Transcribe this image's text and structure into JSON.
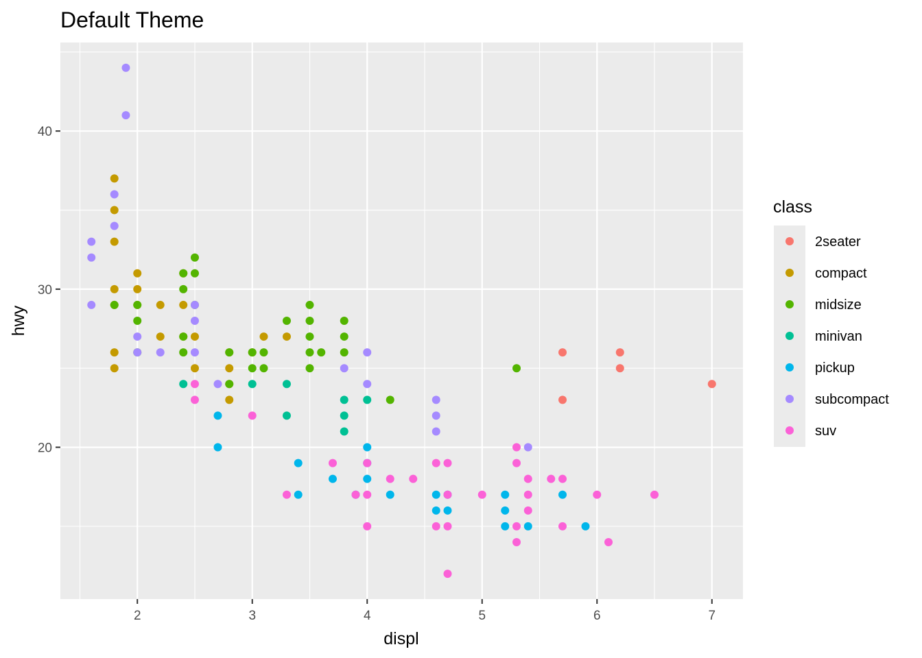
{
  "chart_data": {
    "type": "scatter",
    "title": "Default Theme",
    "xlabel": "displ",
    "ylabel": "hwy",
    "xlim": [
      1.33,
      7.27
    ],
    "ylim": [
      10.4,
      45.6
    ],
    "x_ticks": [
      2,
      3,
      4,
      5,
      6,
      7
    ],
    "y_ticks": [
      20,
      30,
      40
    ],
    "grid": true,
    "legend": {
      "title": "class",
      "position": "right"
    },
    "series": [
      {
        "name": "2seater",
        "color": "#F8766D",
        "points": [
          [
            5.7,
            26
          ],
          [
            5.7,
            23
          ],
          [
            6.2,
            26
          ],
          [
            6.2,
            25
          ],
          [
            7.0,
            24
          ]
        ]
      },
      {
        "name": "compact",
        "color": "#C49A00",
        "points": [
          [
            1.8,
            37
          ],
          [
            1.8,
            35
          ],
          [
            1.8,
            33
          ],
          [
            1.8,
            30
          ],
          [
            1.8,
            29
          ],
          [
            1.8,
            26
          ],
          [
            1.8,
            25
          ],
          [
            2.0,
            31
          ],
          [
            2.0,
            30
          ],
          [
            2.0,
            29
          ],
          [
            2.2,
            29
          ],
          [
            2.2,
            27
          ],
          [
            2.4,
            31
          ],
          [
            2.4,
            29
          ],
          [
            2.4,
            27
          ],
          [
            2.5,
            27
          ],
          [
            2.5,
            25
          ],
          [
            2.8,
            26
          ],
          [
            2.8,
            25
          ],
          [
            2.8,
            24
          ],
          [
            2.8,
            23
          ],
          [
            3.0,
            26
          ],
          [
            3.1,
            27
          ],
          [
            3.3,
            27
          ]
        ]
      },
      {
        "name": "midsize",
        "color": "#53B400",
        "points": [
          [
            1.8,
            29
          ],
          [
            2.0,
            29
          ],
          [
            2.0,
            28
          ],
          [
            2.0,
            26
          ],
          [
            2.4,
            31
          ],
          [
            2.4,
            30
          ],
          [
            2.4,
            27
          ],
          [
            2.4,
            26
          ],
          [
            2.5,
            32
          ],
          [
            2.5,
            31
          ],
          [
            2.5,
            29
          ],
          [
            2.8,
            26
          ],
          [
            2.8,
            24
          ],
          [
            3.0,
            26
          ],
          [
            3.0,
            25
          ],
          [
            3.1,
            26
          ],
          [
            3.1,
            25
          ],
          [
            3.3,
            28
          ],
          [
            3.5,
            29
          ],
          [
            3.5,
            28
          ],
          [
            3.5,
            27
          ],
          [
            3.5,
            26
          ],
          [
            3.5,
            25
          ],
          [
            3.6,
            26
          ],
          [
            3.8,
            28
          ],
          [
            3.8,
            27
          ],
          [
            3.8,
            26
          ],
          [
            4.2,
            23
          ],
          [
            5.3,
            25
          ]
        ]
      },
      {
        "name": "minivan",
        "color": "#00C094",
        "points": [
          [
            2.4,
            24
          ],
          [
            3.0,
            24
          ],
          [
            3.3,
            24
          ],
          [
            3.3,
            22
          ],
          [
            3.8,
            23
          ],
          [
            3.8,
            22
          ],
          [
            3.8,
            21
          ],
          [
            4.0,
            23
          ]
        ]
      },
      {
        "name": "pickup",
        "color": "#00B6EB",
        "points": [
          [
            2.7,
            22
          ],
          [
            2.7,
            20
          ],
          [
            3.4,
            19
          ],
          [
            3.4,
            17
          ],
          [
            3.7,
            18
          ],
          [
            3.9,
            17
          ],
          [
            4.0,
            20
          ],
          [
            4.0,
            19
          ],
          [
            4.0,
            18
          ],
          [
            4.2,
            17
          ],
          [
            4.6,
            17
          ],
          [
            4.6,
            16
          ],
          [
            4.7,
            17
          ],
          [
            4.7,
            16
          ],
          [
            5.2,
            17
          ],
          [
            5.2,
            16
          ],
          [
            5.2,
            15
          ],
          [
            5.4,
            15
          ],
          [
            5.7,
            17
          ],
          [
            5.9,
            15
          ]
        ]
      },
      {
        "name": "subcompact",
        "color": "#A58AFF",
        "points": [
          [
            1.6,
            33
          ],
          [
            1.6,
            32
          ],
          [
            1.6,
            29
          ],
          [
            1.8,
            36
          ],
          [
            1.8,
            34
          ],
          [
            1.9,
            44
          ],
          [
            1.9,
            41
          ],
          [
            2.0,
            27
          ],
          [
            2.0,
            26
          ],
          [
            2.2,
            26
          ],
          [
            2.5,
            29
          ],
          [
            2.5,
            28
          ],
          [
            2.5,
            26
          ],
          [
            2.7,
            24
          ],
          [
            3.8,
            25
          ],
          [
            4.0,
            26
          ],
          [
            4.0,
            24
          ],
          [
            4.6,
            23
          ],
          [
            4.6,
            22
          ],
          [
            4.6,
            21
          ],
          [
            5.4,
            20
          ]
        ]
      },
      {
        "name": "suv",
        "color": "#FB61D7",
        "points": [
          [
            2.5,
            24
          ],
          [
            2.5,
            23
          ],
          [
            3.0,
            22
          ],
          [
            3.3,
            17
          ],
          [
            3.7,
            19
          ],
          [
            3.9,
            17
          ],
          [
            4.0,
            19
          ],
          [
            4.0,
            17
          ],
          [
            4.0,
            15
          ],
          [
            4.2,
            18
          ],
          [
            4.4,
            18
          ],
          [
            4.6,
            19
          ],
          [
            4.6,
            15
          ],
          [
            4.7,
            19
          ],
          [
            4.7,
            17
          ],
          [
            4.7,
            15
          ],
          [
            4.7,
            12
          ],
          [
            5.0,
            17
          ],
          [
            5.3,
            20
          ],
          [
            5.3,
            19
          ],
          [
            5.3,
            15
          ],
          [
            5.3,
            14
          ],
          [
            5.4,
            18
          ],
          [
            5.4,
            17
          ],
          [
            5.4,
            16
          ],
          [
            5.6,
            18
          ],
          [
            5.7,
            18
          ],
          [
            5.7,
            15
          ],
          [
            6.0,
            17
          ],
          [
            6.1,
            14
          ],
          [
            6.5,
            17
          ]
        ]
      }
    ]
  }
}
